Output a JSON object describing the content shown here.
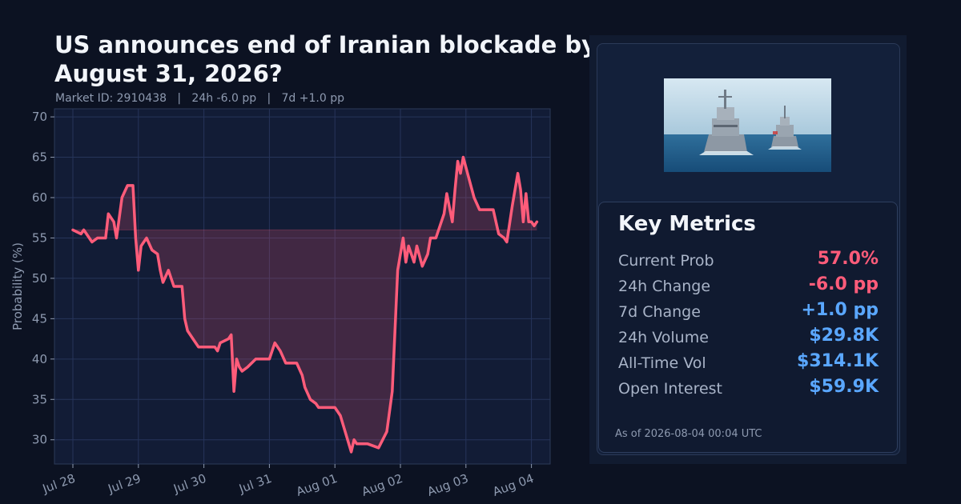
{
  "header": {
    "title": "US announces end of Iranian blockade by August 31, 2026?",
    "subtitle": "Market ID: 2910438   |   24h -6.0 pp   |   7d +1.0 pp"
  },
  "chart_data": {
    "type": "line",
    "ylabel": "Probability (%)",
    "xlabel": "",
    "ylim": [
      27,
      71
    ],
    "yticks": [
      30,
      35,
      40,
      45,
      50,
      55,
      60,
      65,
      70
    ],
    "xticks": [
      "Jul 28",
      "Jul 29",
      "Jul 30",
      "Jul 31",
      "Aug 01",
      "Aug 02",
      "Aug 03",
      "Aug 04"
    ],
    "baseline": 56,
    "grid": true,
    "line_color": "#ff5c7a",
    "fill_color": "#ff5c7a",
    "series": [
      {
        "points": [
          [
            "2026-07-28T00:00",
            56
          ],
          [
            "2026-07-28T03:00",
            55.5
          ],
          [
            "2026-07-28T04:00",
            56
          ],
          [
            "2026-07-28T05:00",
            55.5
          ],
          [
            "2026-07-28T07:00",
            54.5
          ],
          [
            "2026-07-28T09:00",
            55
          ],
          [
            "2026-07-28T12:00",
            55
          ],
          [
            "2026-07-28T13:00",
            58
          ],
          [
            "2026-07-28T15:00",
            57
          ],
          [
            "2026-07-28T16:00",
            55
          ],
          [
            "2026-07-28T18:00",
            60
          ],
          [
            "2026-07-28T20:00",
            61.5
          ],
          [
            "2026-07-28T22:00",
            61.5
          ],
          [
            "2026-07-28T23:00",
            55
          ],
          [
            "2026-07-29T00:00",
            51
          ],
          [
            "2026-07-29T01:00",
            54
          ],
          [
            "2026-07-29T03:00",
            55
          ],
          [
            "2026-07-29T05:00",
            53.5
          ],
          [
            "2026-07-29T07:00",
            53
          ],
          [
            "2026-07-29T08:00",
            51
          ],
          [
            "2026-07-29T09:00",
            49.5
          ],
          [
            "2026-07-29T11:00",
            51
          ],
          [
            "2026-07-29T13:00",
            49
          ],
          [
            "2026-07-29T16:00",
            49
          ],
          [
            "2026-07-29T17:00",
            45
          ],
          [
            "2026-07-29T18:00",
            43.5
          ],
          [
            "2026-07-29T20:00",
            42.5
          ],
          [
            "2026-07-29T22:00",
            41.5
          ],
          [
            "2026-07-30T04:00",
            41.5
          ],
          [
            "2026-07-30T05:00",
            41
          ],
          [
            "2026-07-30T06:00",
            42
          ],
          [
            "2026-07-30T09:00",
            42.5
          ],
          [
            "2026-07-30T10:00",
            43
          ],
          [
            "2026-07-30T11:00",
            36
          ],
          [
            "2026-07-30T12:00",
            40
          ],
          [
            "2026-07-30T13:00",
            39
          ],
          [
            "2026-07-30T14:00",
            38.5
          ],
          [
            "2026-07-30T16:00",
            39
          ],
          [
            "2026-07-30T19:00",
            40
          ],
          [
            "2026-07-31T00:00",
            40
          ],
          [
            "2026-07-31T02:00",
            42
          ],
          [
            "2026-07-31T04:00",
            41
          ],
          [
            "2026-07-31T06:00",
            39.5
          ],
          [
            "2026-07-31T10:00",
            39.5
          ],
          [
            "2026-07-31T12:00",
            38
          ],
          [
            "2026-07-31T13:00",
            36.5
          ],
          [
            "2026-07-31T15:00",
            35
          ],
          [
            "2026-07-31T17:00",
            34.5
          ],
          [
            "2026-07-31T18:00",
            34
          ],
          [
            "2026-08-01T00:00",
            34
          ],
          [
            "2026-08-01T02:00",
            33
          ],
          [
            "2026-08-01T06:00",
            28.5
          ],
          [
            "2026-08-01T07:00",
            30
          ],
          [
            "2026-08-01T08:00",
            29.5
          ],
          [
            "2026-08-01T12:00",
            29.5
          ],
          [
            "2026-08-01T16:00",
            29
          ],
          [
            "2026-08-01T19:00",
            31
          ],
          [
            "2026-08-01T21:00",
            36
          ],
          [
            "2026-08-01T23:00",
            51
          ],
          [
            "2026-08-02T01:00",
            55
          ],
          [
            "2026-08-02T02:00",
            52
          ],
          [
            "2026-08-02T03:00",
            54
          ],
          [
            "2026-08-02T05:00",
            52
          ],
          [
            "2026-08-02T06:00",
            54
          ],
          [
            "2026-08-02T08:00",
            51.5
          ],
          [
            "2026-08-02T10:00",
            53
          ],
          [
            "2026-08-02T11:00",
            55
          ],
          [
            "2026-08-02T13:00",
            55
          ],
          [
            "2026-08-02T16:00",
            58
          ],
          [
            "2026-08-02T17:00",
            60.5
          ],
          [
            "2026-08-02T19:00",
            57
          ],
          [
            "2026-08-02T20:00",
            61
          ],
          [
            "2026-08-02T21:00",
            64.5
          ],
          [
            "2026-08-02T22:00",
            63
          ],
          [
            "2026-08-02T23:00",
            65
          ],
          [
            "2026-08-03T01:00",
            62.5
          ],
          [
            "2026-08-03T03:00",
            60
          ],
          [
            "2026-08-03T05:00",
            58.5
          ],
          [
            "2026-08-03T10:00",
            58.5
          ],
          [
            "2026-08-03T12:00",
            55.5
          ],
          [
            "2026-08-03T14:00",
            55
          ],
          [
            "2026-08-03T15:00",
            54.5
          ],
          [
            "2026-08-03T17:00",
            59
          ],
          [
            "2026-08-03T19:00",
            63
          ],
          [
            "2026-08-03T20:00",
            61
          ],
          [
            "2026-08-03T21:00",
            57
          ],
          [
            "2026-08-03T22:00",
            60.5
          ],
          [
            "2026-08-03T23:00",
            57
          ],
          [
            "2026-08-04T00:00",
            57
          ],
          [
            "2026-08-04T01:00",
            56.5
          ],
          [
            "2026-08-04T02:00",
            57
          ]
        ]
      }
    ]
  },
  "metrics": {
    "title": "Key Metrics",
    "rows": [
      {
        "label": "Current Prob",
        "value": "57.0%",
        "color": "#ff5c7a"
      },
      {
        "label": "24h Change",
        "value": "-6.0 pp",
        "color": "#ff5c7a"
      },
      {
        "label": "7d Change",
        "value": "+1.0 pp",
        "color": "#5aa7ff"
      },
      {
        "label": "24h Volume",
        "value": "$29.8K",
        "color": "#5aa7ff"
      },
      {
        "label": "All-Time Vol",
        "value": "$314.1K",
        "color": "#5aa7ff"
      },
      {
        "label": "Open Interest",
        "value": "$59.9K",
        "color": "#5aa7ff"
      }
    ],
    "as_of": "As of 2026-08-04 00:04 UTC"
  },
  "thumbnail": {
    "icon": "warship-photo"
  }
}
